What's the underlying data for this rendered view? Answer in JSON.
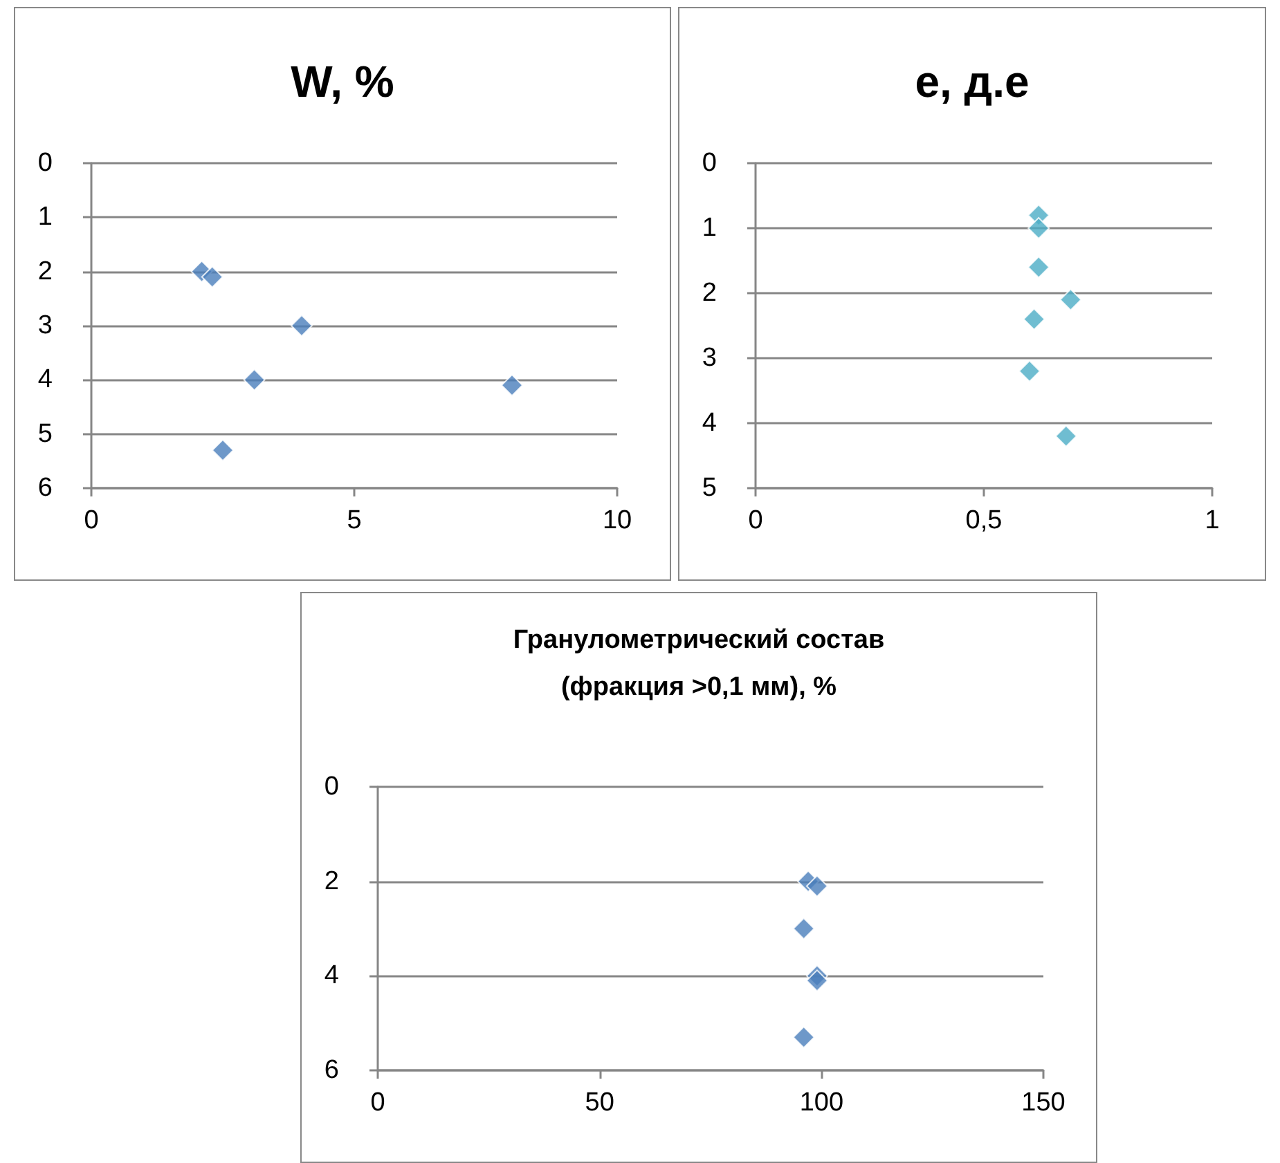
{
  "chart_data": [
    {
      "type": "scatter",
      "title": "W, %",
      "x": [
        2.1,
        2.3,
        4.0,
        3.1,
        8.0,
        2.5
      ],
      "values": [
        2.0,
        2.1,
        3.0,
        4.0,
        4.1,
        5.3
      ],
      "color": "#4a7ebb",
      "xlim": [
        0,
        10
      ],
      "xticks": [
        0,
        5,
        10
      ],
      "ylim": [
        6,
        0
      ],
      "yticks": [
        0,
        1,
        2,
        3,
        4,
        5,
        6
      ],
      "grid": "y",
      "marker": "diamond"
    },
    {
      "type": "scatter",
      "title": "e, д.е",
      "x": [
        0.62,
        0.62,
        0.62,
        0.69,
        0.61,
        0.6,
        0.68
      ],
      "values": [
        0.8,
        1.0,
        1.6,
        2.1,
        2.4,
        3.2,
        4.2
      ],
      "color": "#4bacc6",
      "xlim": [
        0,
        1
      ],
      "xticks": [
        0,
        {
          "value": 0.5,
          "label": "0,5"
        },
        1
      ],
      "ylim": [
        5,
        0
      ],
      "yticks": [
        0,
        1,
        2,
        3,
        4,
        5
      ],
      "grid": "y",
      "marker": "diamond"
    },
    {
      "type": "scatter",
      "title": "Гранулометрический состав\n(фракция >0,1 мм), %",
      "x": [
        97,
        99,
        96,
        99,
        99,
        96
      ],
      "values": [
        2.0,
        2.1,
        3.0,
        4.0,
        4.1,
        5.3
      ],
      "color": "#4a7ebb",
      "xlim": [
        0,
        150
      ],
      "xticks": [
        0,
        50,
        100,
        150
      ],
      "ylim": [
        6,
        0
      ],
      "yticks": [
        0,
        2,
        4,
        6
      ],
      "grid": "y",
      "marker": "diamond"
    }
  ]
}
